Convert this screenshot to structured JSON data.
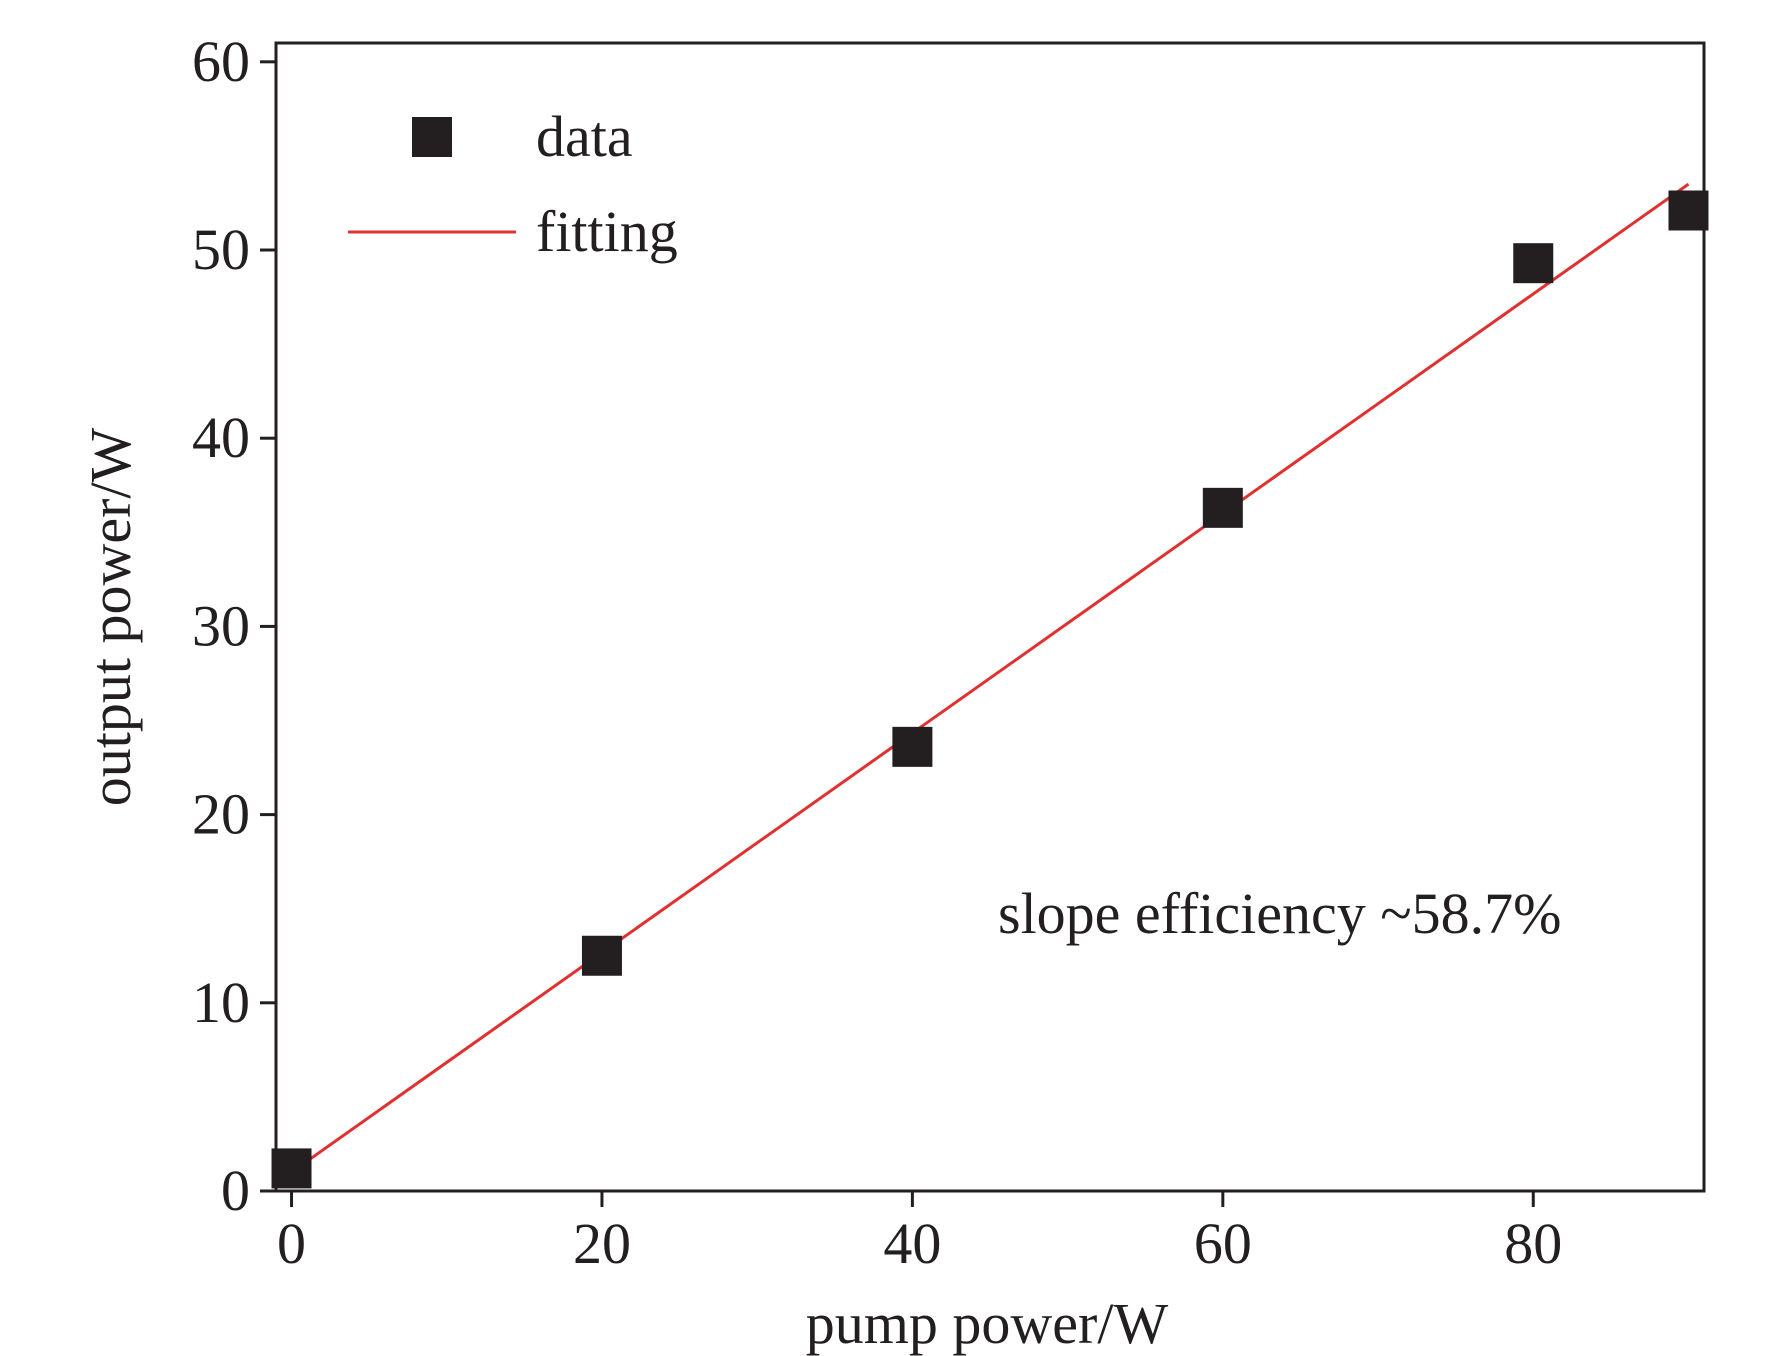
{
  "chart_data": {
    "type": "scatter",
    "title": "",
    "xlabel": "pump power/W",
    "ylabel": "output power/W",
    "xlim": [
      -1,
      91
    ],
    "ylim": [
      0,
      61
    ],
    "x_ticks": [
      0,
      20,
      40,
      60,
      80
    ],
    "y_ticks": [
      0,
      10,
      20,
      30,
      40,
      50,
      60
    ],
    "grid": false,
    "legend_position": "top-left",
    "series": [
      {
        "name": "data",
        "kind": "markers",
        "marker": "square",
        "color": "#231f20",
        "x": [
          0,
          20,
          40,
          60,
          80,
          90
        ],
        "y": [
          1.2,
          12.5,
          23.6,
          36.3,
          49.3,
          52.1
        ]
      },
      {
        "name": "fitting",
        "kind": "line",
        "color": "#e03131",
        "x": [
          0,
          90
        ],
        "y": [
          1.0,
          53.5
        ]
      }
    ],
    "annotations": [
      {
        "text": "slope efficiency ~58.7%",
        "x": 45,
        "y": 13.5
      }
    ]
  }
}
